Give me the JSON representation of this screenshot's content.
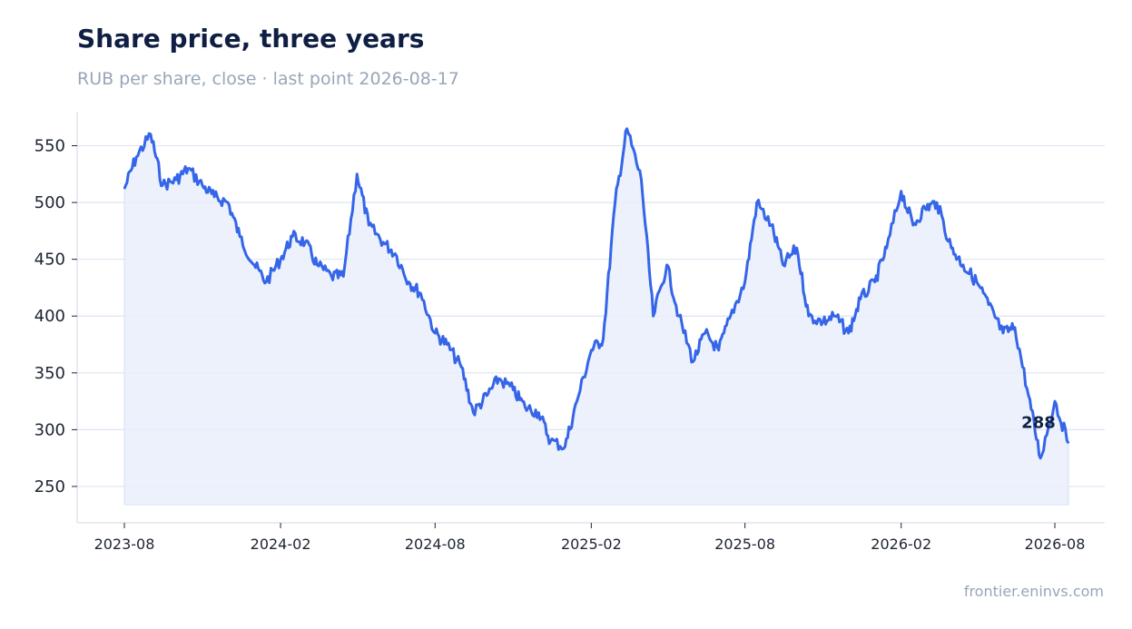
{
  "title": "Share price, three years",
  "subtitle": "RUB per share, close · last point 2026-08-17",
  "source": "frontier.eninvs.com",
  "chart_data": {
    "type": "area",
    "title": "Share price, three years",
    "subtitle": "RUB per share, close · last point 2026-08-17",
    "xlabel": "",
    "ylabel": "",
    "x_range": [
      "2023-08-01",
      "2026-08-17"
    ],
    "ylim": [
      218,
      580
    ],
    "y_ticks": [
      250,
      300,
      350,
      400,
      450,
      500,
      550
    ],
    "x_ticks": [
      "2023-08",
      "2024-02",
      "2024-08",
      "2025-02",
      "2025-08",
      "2026-02",
      "2026-08"
    ],
    "grid": "horizontal",
    "legend": "none",
    "line_color": "#3565e8",
    "fill_color": "#e9effc",
    "last_value_label": "288",
    "series": [
      {
        "x": [
          "2023-08-01",
          "2023-08-15",
          "2023-09-01",
          "2023-09-15",
          "2023-10-01",
          "2023-10-15",
          "2023-11-01",
          "2023-11-15",
          "2023-12-01",
          "2023-12-15",
          "2024-01-01",
          "2024-01-15",
          "2024-02-01",
          "2024-02-15",
          "2024-03-01",
          "2024-03-15",
          "2024-04-01",
          "2024-04-15",
          "2024-05-01",
          "2024-05-15",
          "2024-06-01",
          "2024-06-15",
          "2024-07-01",
          "2024-07-15",
          "2024-08-01",
          "2024-08-15",
          "2024-09-01",
          "2024-09-15",
          "2024-10-01",
          "2024-10-15",
          "2024-11-01",
          "2024-11-15",
          "2024-12-01",
          "2024-12-15",
          "2025-01-01",
          "2025-01-15",
          "2025-02-01",
          "2025-02-15",
          "2025-03-01",
          "2025-03-15",
          "2025-04-01",
          "2025-04-15",
          "2025-05-01",
          "2025-05-15",
          "2025-06-01",
          "2025-06-15",
          "2025-07-01",
          "2025-07-15",
          "2025-08-01",
          "2025-08-15",
          "2025-09-01",
          "2025-09-15",
          "2025-10-01",
          "2025-10-15",
          "2025-11-01",
          "2025-11-15",
          "2025-12-01",
          "2025-12-15",
          "2026-01-01",
          "2026-01-15",
          "2026-02-01",
          "2026-02-15",
          "2026-03-01",
          "2026-03-15",
          "2026-04-01",
          "2026-04-15",
          "2026-05-01",
          "2026-05-15",
          "2026-06-01",
          "2026-06-15",
          "2026-07-01",
          "2026-07-15",
          "2026-08-01",
          "2026-08-17"
        ],
        "values": [
          512,
          540,
          560,
          515,
          520,
          530,
          515,
          505,
          500,
          470,
          445,
          430,
          450,
          470,
          465,
          445,
          435,
          435,
          525,
          480,
          465,
          455,
          430,
          420,
          385,
          375,
          355,
          315,
          330,
          345,
          335,
          320,
          315,
          290,
          285,
          325,
          370,
          380,
          500,
          565,
          520,
          400,
          445,
          400,
          360,
          385,
          370,
          400,
          430,
          500,
          480,
          445,
          460,
          400,
          395,
          400,
          385,
          415,
          430,
          460,
          510,
          480,
          495,
          500,
          460,
          445,
          430,
          410,
          385,
          390,
          330,
          275,
          325,
          288
        ]
      }
    ]
  }
}
